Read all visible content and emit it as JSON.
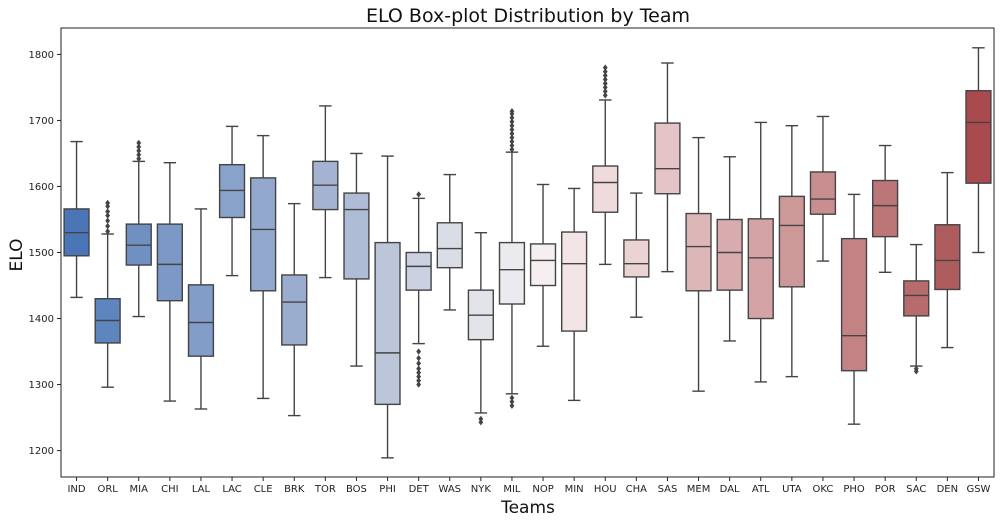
{
  "chart_data": {
    "type": "box",
    "title": "ELO Box-plot Distribution by Team",
    "xlabel": "Teams",
    "ylabel": "ELO",
    "ylim": [
      1160,
      1840
    ],
    "yticks": [
      1200,
      1300,
      1400,
      1500,
      1600,
      1700,
      1800
    ],
    "grid": false,
    "categories": [
      "IND",
      "ORL",
      "MIA",
      "CHI",
      "LAL",
      "LAC",
      "CLE",
      "BRK",
      "TOR",
      "BOS",
      "PHI",
      "DET",
      "WAS",
      "NYK",
      "MIL",
      "NOP",
      "MIN",
      "HOU",
      "CHA",
      "SAS",
      "MEM",
      "DAL",
      "ATL",
      "UTA",
      "OKC",
      "PHO",
      "POR",
      "SAC",
      "DEN",
      "GSW"
    ],
    "colors": [
      "#4a76b8",
      "#5f85be",
      "#7090c2",
      "#7b98c6",
      "#829dc8",
      "#89a2ca",
      "#92a8cc",
      "#9badcf",
      "#a3b3d1",
      "#afbcd6",
      "#bcc6da",
      "#cbd1e0",
      "#d9dde6",
      "#e2e4ea",
      "#ebebef",
      "#f5eff0",
      "#f3e4e5",
      "#efdadc",
      "#ebd3d4",
      "#e4c4c6",
      "#ddb6b8",
      "#d8acae",
      "#d3a3a5",
      "#cd9898",
      "#c98f90",
      "#c38384",
      "#bc7677",
      "#b66b6c",
      "#ae5c5d",
      "#a84a4e"
    ],
    "boxes": [
      {
        "team": "IND",
        "whislo": 1432,
        "q1": 1495,
        "med": 1530,
        "q3": 1566,
        "whishi": 1668,
        "fliers": []
      },
      {
        "team": "ORL",
        "whislo": 1296,
        "q1": 1363,
        "med": 1397,
        "q3": 1430,
        "whishi": 1528,
        "fliers": [
          1532,
          1540,
          1548,
          1556,
          1562,
          1570,
          1575
        ]
      },
      {
        "team": "MIA",
        "whislo": 1403,
        "q1": 1481,
        "med": 1511,
        "q3": 1543,
        "whishi": 1638,
        "fliers": [
          1642,
          1648,
          1654,
          1660,
          1666
        ]
      },
      {
        "team": "CHI",
        "whislo": 1275,
        "q1": 1427,
        "med": 1482,
        "q3": 1543,
        "whishi": 1636,
        "fliers": []
      },
      {
        "team": "LAL",
        "whislo": 1263,
        "q1": 1343,
        "med": 1394,
        "q3": 1451,
        "whishi": 1566,
        "fliers": []
      },
      {
        "team": "LAC",
        "whislo": 1465,
        "q1": 1553,
        "med": 1594,
        "q3": 1633,
        "whishi": 1691,
        "fliers": []
      },
      {
        "team": "CLE",
        "whislo": 1279,
        "q1": 1442,
        "med": 1535,
        "q3": 1613,
        "whishi": 1677,
        "fliers": []
      },
      {
        "team": "BRK",
        "whislo": 1253,
        "q1": 1360,
        "med": 1425,
        "q3": 1466,
        "whishi": 1574,
        "fliers": []
      },
      {
        "team": "TOR",
        "whislo": 1462,
        "q1": 1565,
        "med": 1602,
        "q3": 1638,
        "whishi": 1722,
        "fliers": []
      },
      {
        "team": "BOS",
        "whislo": 1328,
        "q1": 1460,
        "med": 1565,
        "q3": 1590,
        "whishi": 1650,
        "fliers": []
      },
      {
        "team": "PHI",
        "whislo": 1189,
        "q1": 1270,
        "med": 1348,
        "q3": 1515,
        "whishi": 1646,
        "fliers": []
      },
      {
        "team": "DET",
        "whislo": 1362,
        "q1": 1443,
        "med": 1479,
        "q3": 1500,
        "whishi": 1582,
        "fliers": [
          1300,
          1306,
          1312,
          1318,
          1324,
          1332,
          1340,
          1350,
          1588
        ]
      },
      {
        "team": "WAS",
        "whislo": 1413,
        "q1": 1477,
        "med": 1506,
        "q3": 1545,
        "whishi": 1618,
        "fliers": []
      },
      {
        "team": "NYK",
        "whislo": 1257,
        "q1": 1368,
        "med": 1405,
        "q3": 1443,
        "whishi": 1530,
        "fliers": [
          1243,
          1248
        ]
      },
      {
        "team": "MIL",
        "whislo": 1286,
        "q1": 1422,
        "med": 1474,
        "q3": 1515,
        "whishi": 1652,
        "fliers": [
          1268,
          1274,
          1280,
          1656,
          1662,
          1668,
          1674,
          1680,
          1686,
          1692,
          1698,
          1704,
          1710,
          1714
        ]
      },
      {
        "team": "NOP",
        "whislo": 1358,
        "q1": 1450,
        "med": 1488,
        "q3": 1513,
        "whishi": 1603,
        "fliers": []
      },
      {
        "team": "MIN",
        "whislo": 1276,
        "q1": 1381,
        "med": 1483,
        "q3": 1531,
        "whishi": 1597,
        "fliers": []
      },
      {
        "team": "HOU",
        "whislo": 1482,
        "q1": 1561,
        "med": 1606,
        "q3": 1631,
        "whishi": 1731,
        "fliers": [
          1738,
          1744,
          1750,
          1756,
          1762,
          1768,
          1774,
          1780
        ]
      },
      {
        "team": "CHA",
        "whislo": 1402,
        "q1": 1463,
        "med": 1483,
        "q3": 1519,
        "whishi": 1590,
        "fliers": []
      },
      {
        "team": "SAS",
        "whislo": 1471,
        "q1": 1589,
        "med": 1627,
        "q3": 1696,
        "whishi": 1787,
        "fliers": []
      },
      {
        "team": "MEM",
        "whislo": 1290,
        "q1": 1442,
        "med": 1509,
        "q3": 1559,
        "whishi": 1674,
        "fliers": []
      },
      {
        "team": "DAL",
        "whislo": 1366,
        "q1": 1443,
        "med": 1500,
        "q3": 1550,
        "whishi": 1645,
        "fliers": []
      },
      {
        "team": "ATL",
        "whislo": 1304,
        "q1": 1400,
        "med": 1492,
        "q3": 1551,
        "whishi": 1697,
        "fliers": []
      },
      {
        "team": "UTA",
        "whislo": 1312,
        "q1": 1448,
        "med": 1541,
        "q3": 1585,
        "whishi": 1692,
        "fliers": []
      },
      {
        "team": "OKC",
        "whislo": 1487,
        "q1": 1558,
        "med": 1581,
        "q3": 1622,
        "whishi": 1706,
        "fliers": []
      },
      {
        "team": "PHO",
        "whislo": 1240,
        "q1": 1321,
        "med": 1374,
        "q3": 1521,
        "whishi": 1588,
        "fliers": []
      },
      {
        "team": "POR",
        "whislo": 1470,
        "q1": 1524,
        "med": 1571,
        "q3": 1609,
        "whishi": 1662,
        "fliers": []
      },
      {
        "team": "SAC",
        "whislo": 1328,
        "q1": 1404,
        "med": 1435,
        "q3": 1457,
        "whishi": 1512,
        "fliers": [
          1320,
          1324
        ]
      },
      {
        "team": "DEN",
        "whislo": 1356,
        "q1": 1444,
        "med": 1488,
        "q3": 1542,
        "whishi": 1621,
        "fliers": []
      },
      {
        "team": "GSW",
        "whislo": 1500,
        "q1": 1605,
        "med": 1697,
        "q3": 1745,
        "whishi": 1810,
        "fliers": []
      }
    ]
  }
}
